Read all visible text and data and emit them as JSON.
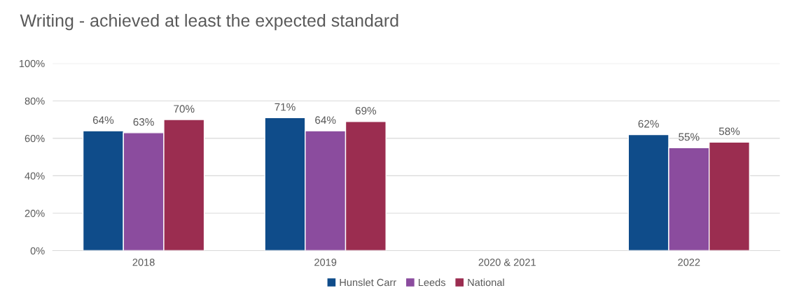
{
  "chart_data": {
    "type": "bar",
    "title": "Writing - achieved at least the expected standard",
    "categories": [
      "2018",
      "2019",
      "2020 & 2021",
      "2022"
    ],
    "series": [
      {
        "name": "Hunslet Carr",
        "color": "#0f4c8a",
        "values": [
          64,
          71,
          null,
          62
        ],
        "value_labels": [
          "64%",
          "71%",
          null,
          "62%"
        ]
      },
      {
        "name": "Leeds",
        "color": "#8b4c9e",
        "values": [
          63,
          64,
          null,
          55
        ],
        "value_labels": [
          "63%",
          "64%",
          null,
          "55%"
        ]
      },
      {
        "name": "National",
        "color": "#9b2d50",
        "values": [
          70,
          69,
          null,
          58
        ],
        "value_labels": [
          "70%",
          "69%",
          null,
          "58%"
        ]
      }
    ],
    "ylim": [
      0,
      100
    ],
    "yticks": [
      {
        "value": 0,
        "label": "0%"
      },
      {
        "value": 20,
        "label": "20%"
      },
      {
        "value": 40,
        "label": "40%"
      },
      {
        "value": 60,
        "label": "60%"
      },
      {
        "value": 80,
        "label": "80%"
      },
      {
        "value": 100,
        "label": "100%"
      }
    ],
    "grid": "y",
    "legend": "bottom"
  }
}
